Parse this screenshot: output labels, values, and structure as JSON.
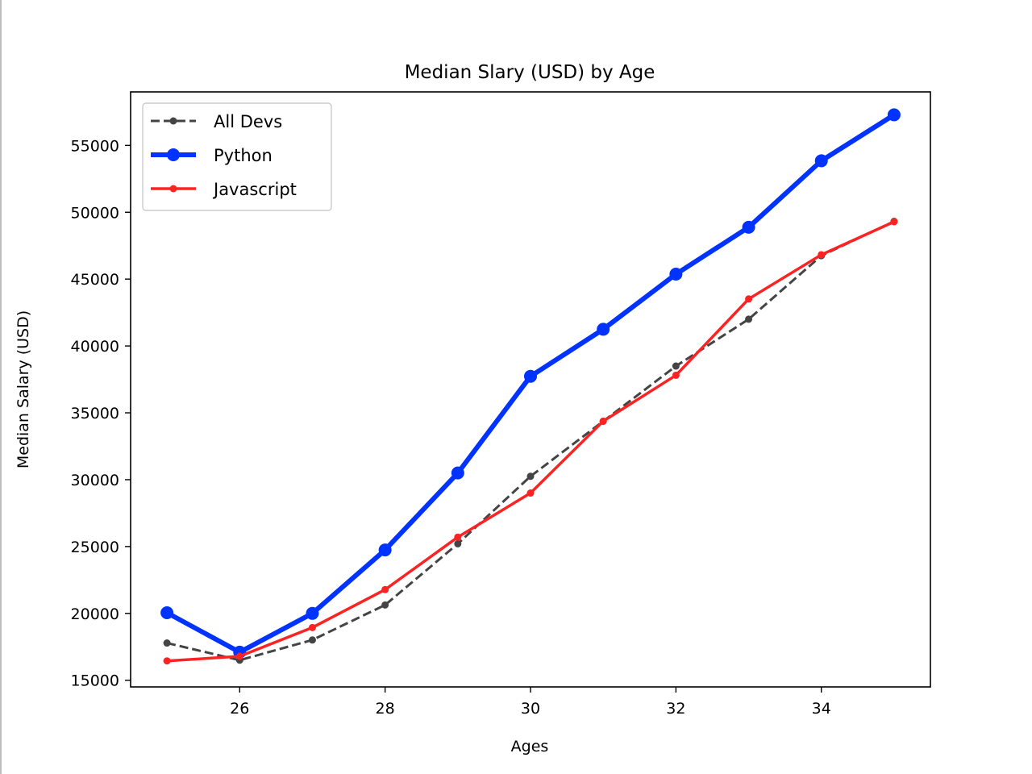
{
  "chart_data": {
    "type": "line",
    "title": "Median Slary (USD) by Age",
    "xlabel": "Ages",
    "ylabel": "Median Salary (USD)",
    "xlim": [
      24.5,
      35.5
    ],
    "ylim": [
      14500,
      59000
    ],
    "x_ticks": [
      26,
      28,
      30,
      32,
      34
    ],
    "y_ticks": [
      15000,
      20000,
      25000,
      30000,
      35000,
      40000,
      45000,
      50000,
      55000
    ],
    "grid": false,
    "legend_position": "upper-left",
    "x": [
      25,
      26,
      27,
      28,
      29,
      30,
      31,
      32,
      33,
      34,
      35
    ],
    "series": [
      {
        "name": "All Devs",
        "color": "#444444",
        "style": "dashed",
        "values": [
          17784,
          16500,
          18012,
          20628,
          25206,
          30252,
          34368,
          38496,
          42000,
          46752,
          49320
        ]
      },
      {
        "name": "Python",
        "color": "#0033ff",
        "style": "solid-thick",
        "values": [
          20046,
          17100,
          20000,
          24744,
          30500,
          37732,
          41247,
          45372,
          48876,
          53850,
          57287
        ]
      },
      {
        "name": "Javascript",
        "color": "#ff2222",
        "style": "solid",
        "values": [
          16446,
          16791,
          18942,
          21780,
          25704,
          29000,
          34372,
          37810,
          43515,
          46823,
          49293
        ]
      }
    ]
  }
}
